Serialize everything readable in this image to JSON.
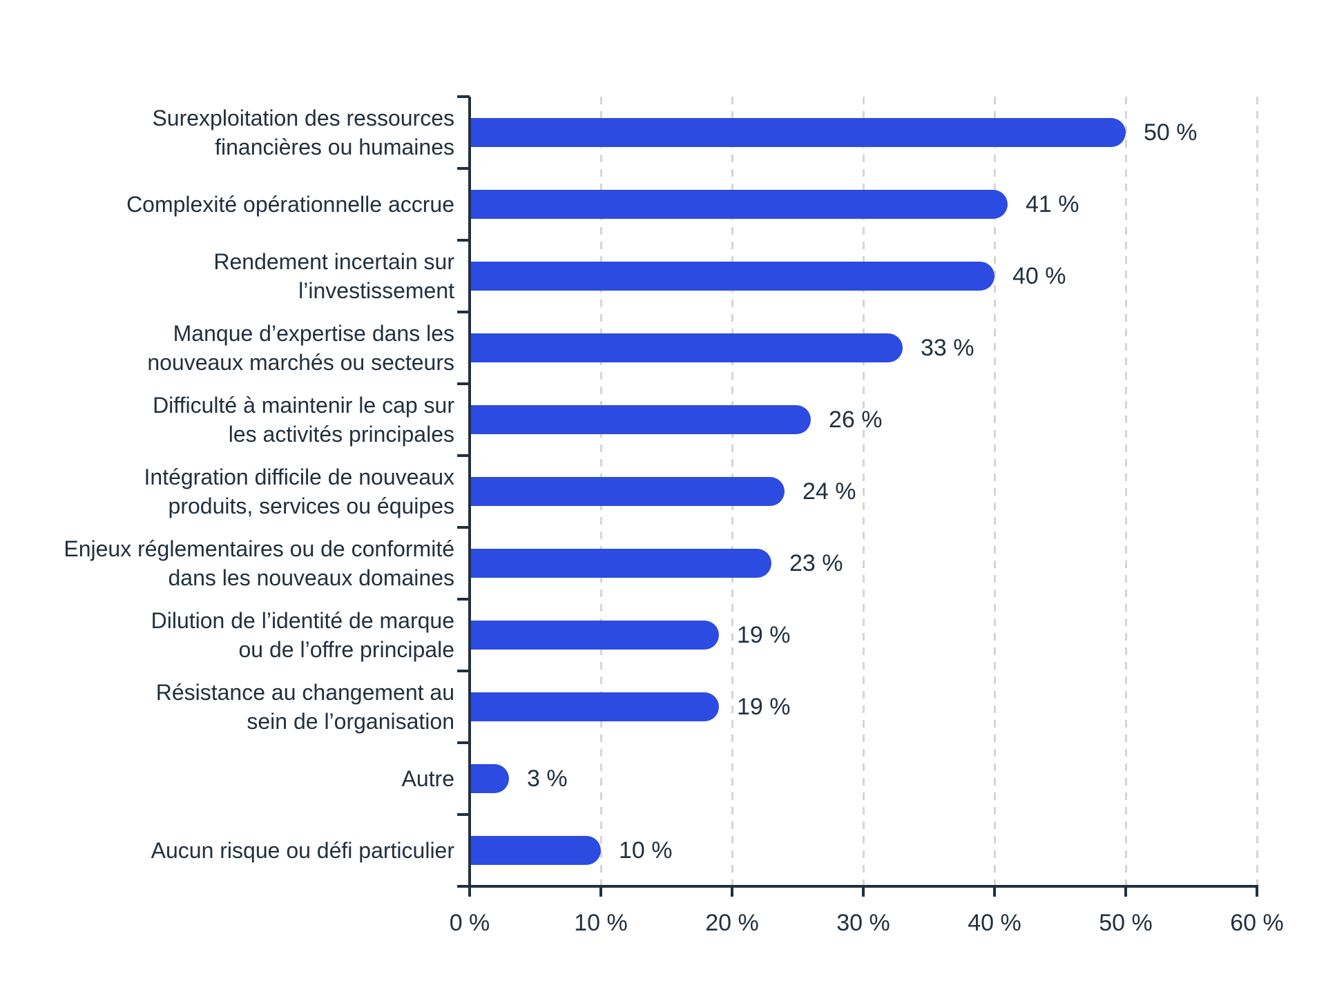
{
  "chart_data": {
    "type": "bar",
    "orientation": "horizontal",
    "title": "",
    "xlabel": "",
    "ylabel": "",
    "unit": "%",
    "xlim": [
      0,
      60
    ],
    "grid": "vertical-dashed",
    "legend": "none",
    "categories": [
      "Surexploitation des ressources\nfinancières ou humaines",
      "Complexité opérationnelle accrue",
      "Rendement incertain sur l’investissement",
      "Manque d’expertise dans les\nnouveaux marchés ou secteurs",
      "Difficulté à maintenir le cap sur\nles activités principales",
      "Intégration difficile de nouveaux\nproduits, services ou équipes",
      "Enjeux réglementaires ou de conformité\ndans les nouveaux domaines",
      "Dilution de l’identité de marque\nou de l’offre principale",
      "Résistance au changement au\nsein de l’organisation",
      "Autre",
      "Aucun risque ou défi particulier"
    ],
    "values": [
      50,
      41,
      40,
      33,
      26,
      24,
      23,
      19,
      19,
      3,
      10
    ],
    "value_labels": [
      "50 %",
      "41 %",
      "40 %",
      "33 %",
      "26 %",
      "24 %",
      "23 %",
      "19 %",
      "19 %",
      "3 %",
      "10 %"
    ],
    "x_tick_values": [
      0,
      10,
      20,
      30,
      40,
      50,
      60
    ],
    "x_tick_labels": [
      "0 %",
      "10 %",
      "20 %",
      "30 %",
      "40 %",
      "50 %",
      "60 %"
    ],
    "colors": {
      "bar": "#2c4be1",
      "text": "#22303e",
      "axis": "#20303f",
      "gridline": "#d7d5d2"
    }
  }
}
